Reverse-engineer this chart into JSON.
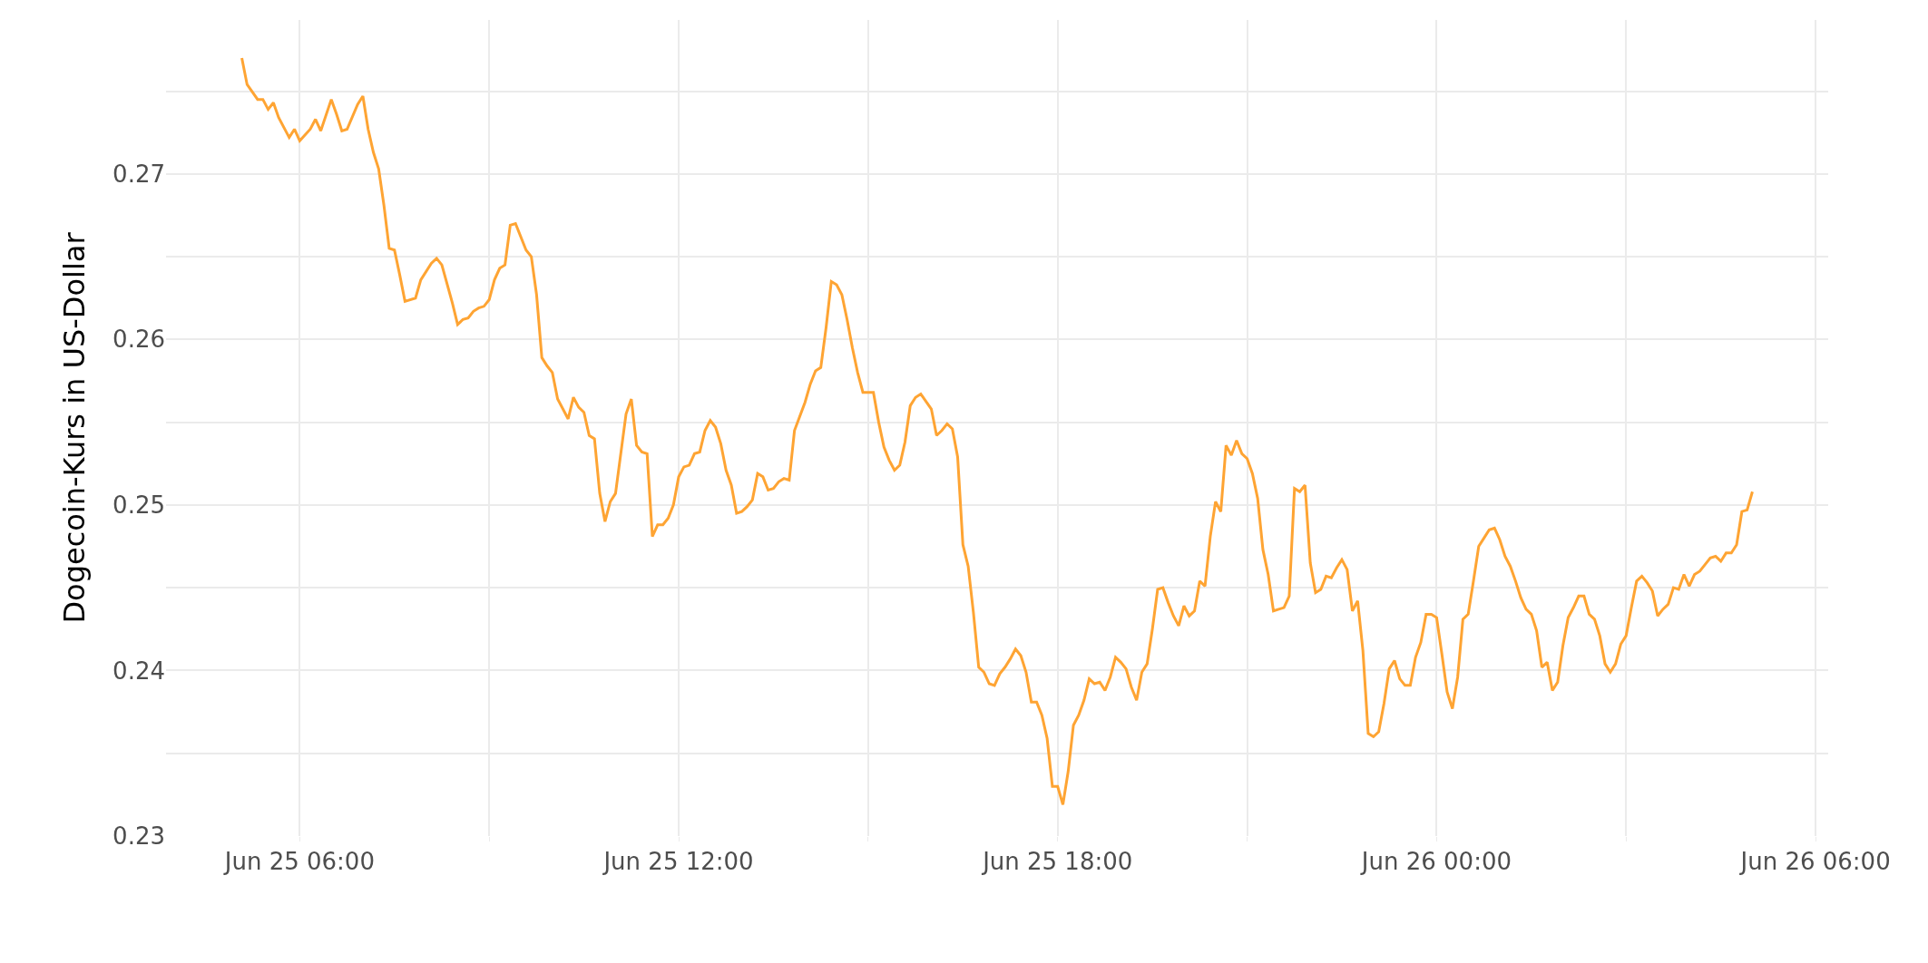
{
  "chart_data": {
    "type": "line",
    "ylabel": "Dogecoin-Kurs in US-Dollar",
    "color": "#fea433",
    "grid": true,
    "legend": false,
    "marker": "none",
    "line_style": "solid",
    "x": [
      "--06-25T05:05",
      "--06-25T05:10",
      "--06-25T05:20",
      "--06-25T05:25",
      "--06-25T05:30",
      "--06-25T05:35",
      "--06-25T05:40",
      "--06-25T05:50",
      "--06-25T05:55",
      "--06-25T06:00",
      "--06-25T06:10",
      "--06-25T06:15",
      "--06-25T06:20",
      "--06-25T06:30",
      "--06-25T06:35",
      "--06-25T06:40",
      "--06-25T06:45",
      "--06-25T06:55",
      "--06-25T07:00",
      "--06-25T07:05",
      "--06-25T07:10",
      "--06-25T07:15",
      "--06-25T07:20",
      "--06-25T07:25",
      "--06-25T07:30",
      "--06-25T07:35",
      "--06-25T07:40",
      "--06-25T07:50",
      "--06-25T07:55",
      "--06-25T08:05",
      "--06-25T08:10",
      "--06-25T08:15",
      "--06-25T08:25",
      "--06-25T08:30",
      "--06-25T08:35",
      "--06-25T08:40",
      "--06-25T08:45",
      "--06-25T08:50",
      "--06-25T08:55",
      "--06-25T09:00",
      "--06-25T09:05",
      "--06-25T09:10",
      "--06-25T09:15",
      "--06-25T09:20",
      "--06-25T09:25",
      "--06-25T09:35",
      "--06-25T09:40",
      "--06-25T09:45",
      "--06-25T09:50",
      "--06-25T09:55",
      "--06-25T10:00",
      "--06-25T10:05",
      "--06-25T10:15",
      "--06-25T10:20",
      "--06-25T10:25",
      "--06-25T10:30",
      "--06-25T10:35",
      "--06-25T10:40",
      "--06-25T10:45",
      "--06-25T10:50",
      "--06-25T10:55",
      "--06-25T11:00",
      "--06-25T11:10",
      "--06-25T11:15",
      "--06-25T11:20",
      "--06-25T11:25",
      "--06-25T11:30",
      "--06-25T11:35",
      "--06-25T11:40",
      "--06-25T11:45",
      "--06-25T11:50",
      "--06-25T11:55",
      "--06-25T12:00",
      "--06-25T12:05",
      "--06-25T12:10",
      "--06-25T12:15",
      "--06-25T12:20",
      "--06-25T12:25",
      "--06-25T12:30",
      "--06-25T12:35",
      "--06-25T12:40",
      "--06-25T12:45",
      "--06-25T12:50",
      "--06-25T12:55",
      "--06-25T13:00",
      "--06-25T13:05",
      "--06-25T13:10",
      "--06-25T13:15",
      "--06-25T13:20",
      "--06-25T13:25",
      "--06-25T13:30",
      "--06-25T13:35",
      "--06-25T13:40",
      "--06-25T13:45",
      "--06-25T13:50",
      "--06-25T14:00",
      "--06-25T14:05",
      "--06-25T14:10",
      "--06-25T14:15",
      "--06-25T14:20",
      "--06-25T14:25",
      "--06-25T14:30",
      "--06-25T14:35",
      "--06-25T14:40",
      "--06-25T14:45",
      "--06-25T14:50",
      "--06-25T14:55",
      "--06-25T15:05",
      "--06-25T15:10",
      "--06-25T15:15",
      "--06-25T15:20",
      "--06-25T15:25",
      "--06-25T15:30",
      "--06-25T15:35",
      "--06-25T15:40",
      "--06-25T15:45",
      "--06-25T15:50",
      "--06-25T16:00",
      "--06-25T16:05",
      "--06-25T16:10",
      "--06-25T16:15",
      "--06-25T16:20",
      "--06-25T16:25",
      "--06-25T16:30",
      "--06-25T16:35",
      "--06-25T16:40",
      "--06-25T16:45",
      "--06-25T16:50",
      "--06-25T16:55",
      "--06-25T17:00",
      "--06-25T17:05",
      "--06-25T17:10",
      "--06-25T17:15",
      "--06-25T17:20",
      "--06-25T17:25",
      "--06-25T17:30",
      "--06-25T17:35",
      "--06-25T17:40",
      "--06-25T17:45",
      "--06-25T17:50",
      "--06-25T17:55",
      "--06-25T18:00",
      "--06-25T18:05",
      "--06-25T18:10",
      "--06-25T18:15",
      "--06-25T18:20",
      "--06-25T18:25",
      "--06-25T18:30",
      "--06-25T18:35",
      "--06-25T18:40",
      "--06-25T18:45",
      "--06-25T18:50",
      "--06-25T18:55",
      "--06-25T19:00",
      "--06-25T19:05",
      "--06-25T19:10",
      "--06-25T19:15",
      "--06-25T19:20",
      "--06-25T19:25",
      "--06-25T19:30",
      "--06-25T19:35",
      "--06-25T19:40",
      "--06-25T19:45",
      "--06-25T19:50",
      "--06-25T19:55",
      "--06-25T20:00",
      "--06-25T20:05",
      "--06-25T20:10",
      "--06-25T20:15",
      "--06-25T20:20",
      "--06-25T20:25",
      "--06-25T20:30",
      "--06-25T20:35",
      "--06-25T20:40",
      "--06-25T20:45",
      "--06-25T20:50",
      "--06-25T20:55",
      "--06-25T21:00",
      "--06-25T21:05",
      "--06-25T21:10",
      "--06-25T21:15",
      "--06-25T21:20",
      "--06-25T21:25",
      "--06-25T21:30",
      "--06-25T21:35",
      "--06-25T21:40",
      "--06-25T21:45",
      "--06-25T21:50",
      "--06-25T21:55",
      "--06-25T22:00",
      "--06-25T22:05",
      "--06-25T22:10",
      "--06-25T22:15",
      "--06-25T22:20",
      "--06-25T22:25",
      "--06-25T22:30",
      "--06-25T22:35",
      "--06-25T22:40",
      "--06-25T22:45",
      "--06-25T22:50",
      "--06-25T22:55",
      "--06-25T23:00",
      "--06-25T23:05",
      "--06-25T23:10",
      "--06-25T23:15",
      "--06-25T23:20",
      "--06-25T23:25",
      "--06-25T23:30",
      "--06-25T23:35",
      "--06-25T23:40",
      "--06-25T23:45",
      "--06-25T23:50",
      "--06-25T23:55",
      "--06-26T00:00",
      "--06-26T00:05",
      "--06-26T00:10",
      "--06-26T00:15",
      "--06-26T00:20",
      "--06-26T00:25",
      "--06-26T00:30",
      "--06-26T00:35",
      "--06-26T00:40",
      "--06-26T00:45",
      "--06-26T00:50",
      "--06-26T00:55",
      "--06-26T01:00",
      "--06-26T01:05",
      "--06-26T01:10",
      "--06-26T01:15",
      "--06-26T01:20",
      "--06-26T01:25",
      "--06-26T01:30",
      "--06-26T01:35",
      "--06-26T01:40",
      "--06-26T01:45",
      "--06-26T01:50",
      "--06-26T01:55",
      "--06-26T02:00",
      "--06-26T02:05",
      "--06-26T02:10",
      "--06-26T02:15",
      "--06-26T02:20",
      "--06-26T02:25",
      "--06-26T02:30",
      "--06-26T02:35",
      "--06-26T02:40",
      "--06-26T02:45",
      "--06-26T02:50",
      "--06-26T02:55",
      "--06-26T03:00",
      "--06-26T03:05",
      "--06-26T03:10",
      "--06-26T03:15",
      "--06-26T03:20",
      "--06-26T03:25",
      "--06-26T03:30",
      "--06-26T03:35",
      "--06-26T03:40",
      "--06-26T03:45",
      "--06-26T03:50",
      "--06-26T03:55",
      "--06-26T04:00",
      "--06-26T04:05",
      "--06-26T04:10",
      "--06-26T04:15",
      "--06-26T04:20",
      "--06-26T04:25",
      "--06-26T04:30",
      "--06-26T04:35",
      "--06-26T04:40",
      "--06-26T04:45",
      "--06-26T04:50",
      "--06-26T04:55",
      "--06-26T05:00"
    ],
    "values": [
      0.277,
      0.2754,
      0.2745,
      0.2745,
      0.2739,
      0.2743,
      0.2734,
      0.2722,
      0.2727,
      0.272,
      0.2727,
      0.2733,
      0.2726,
      0.2745,
      0.2736,
      0.2726,
      0.2727,
      0.2742,
      0.2747,
      0.2727,
      0.2713,
      0.2703,
      0.2681,
      0.2655,
      0.2654,
      0.2639,
      0.2623,
      0.2625,
      0.2636,
      0.2646,
      0.2649,
      0.2645,
      0.2622,
      0.2609,
      0.2612,
      0.2613,
      0.2617,
      0.2619,
      0.262,
      0.2624,
      0.2636,
      0.2643,
      0.2645,
      0.2669,
      0.267,
      0.2654,
      0.265,
      0.2627,
      0.2589,
      0.2584,
      0.258,
      0.2564,
      0.2552,
      0.2565,
      0.2559,
      0.2556,
      0.2542,
      0.254,
      0.2507,
      0.249,
      0.2502,
      0.2507,
      0.2555,
      0.2564,
      0.2536,
      0.2532,
      0.2531,
      0.2481,
      0.2488,
      0.2488,
      0.2492,
      0.25,
      0.2517,
      0.2523,
      0.2524,
      0.2531,
      0.2532,
      0.2545,
      0.2551,
      0.2547,
      0.2537,
      0.2521,
      0.2512,
      0.2495,
      0.2496,
      0.2499,
      0.2503,
      0.2519,
      0.2517,
      0.2509,
      0.251,
      0.2514,
      0.2516,
      0.2515,
      0.2545,
      0.2562,
      0.2573,
      0.2581,
      0.2583,
      0.2607,
      0.2635,
      0.2633,
      0.2627,
      0.2612,
      0.2595,
      0.258,
      0.2568,
      0.2568,
      0.255,
      0.2535,
      0.2527,
      0.2521,
      0.2524,
      0.2538,
      0.256,
      0.2565,
      0.2567,
      0.2558,
      0.2542,
      0.2545,
      0.2549,
      0.2546,
      0.2529,
      0.2476,
      0.2463,
      0.2435,
      0.2402,
      0.2399,
      0.2392,
      0.2391,
      0.2398,
      0.2402,
      0.2407,
      0.2413,
      0.2409,
      0.2399,
      0.2381,
      0.2381,
      0.2373,
      0.2359,
      0.233,
      0.233,
      0.2319,
      0.2339,
      0.2367,
      0.2373,
      0.2382,
      0.2395,
      0.2392,
      0.2393,
      0.2388,
      0.2396,
      0.2408,
      0.2405,
      0.2401,
      0.239,
      0.2382,
      0.2399,
      0.2404,
      0.2425,
      0.2449,
      0.245,
      0.2441,
      0.2433,
      0.2427,
      0.2439,
      0.2433,
      0.2436,
      0.2454,
      0.2451,
      0.2481,
      0.2502,
      0.2496,
      0.2536,
      0.253,
      0.2539,
      0.2531,
      0.2528,
      0.2519,
      0.2504,
      0.2473,
      0.2458,
      0.2436,
      0.2437,
      0.2438,
      0.2445,
      0.251,
      0.2508,
      0.2512,
      0.2465,
      0.2447,
      0.2449,
      0.2457,
      0.2456,
      0.2462,
      0.2467,
      0.2461,
      0.2436,
      0.2442,
      0.2412,
      0.2362,
      0.236,
      0.2363,
      0.238,
      0.2401,
      0.2406,
      0.2395,
      0.2391,
      0.2391,
      0.2408,
      0.2417,
      0.2434,
      0.2434,
      0.2432,
      0.241,
      0.2387,
      0.2377,
      0.2396,
      0.2431,
      0.2434,
      0.2454,
      0.2475,
      0.248,
      0.2485,
      0.2486,
      0.2479,
      0.2469,
      0.2463,
      0.2454,
      0.2444,
      0.2437,
      0.2434,
      0.2424,
      0.2402,
      0.2405,
      0.2388,
      0.2393,
      0.2415,
      0.2432,
      0.2438,
      0.2445,
      0.2445,
      0.2434,
      0.2431,
      0.2421,
      0.2404,
      0.2399,
      0.2404,
      0.2416,
      0.2421,
      0.2438,
      0.2454,
      0.2457,
      0.2453,
      0.2448,
      0.2433,
      0.2437,
      0.244,
      0.245,
      0.2449,
      0.2458,
      0.2451,
      0.2458,
      0.246,
      0.2464,
      0.2468,
      0.2469,
      0.2466,
      0.2471,
      0.2471,
      0.2476,
      0.2496,
      0.2497,
      0.2508
    ],
    "xlim": [
      "--06-25T03:53",
      "--06-26T06:12"
    ],
    "xticks": [
      {
        "value": "--06-25T06:00",
        "label": "Jun 25 06:00"
      },
      {
        "value": "--06-25T09:00",
        "label": null
      },
      {
        "value": "--06-25T12:00",
        "label": "Jun 25 12:00"
      },
      {
        "value": "--06-25T15:00",
        "label": null
      },
      {
        "value": "--06-25T18:00",
        "label": "Jun 25 18:00"
      },
      {
        "value": "--06-25T21:00",
        "label": null
      },
      {
        "value": "--06-26T00:00",
        "label": "Jun 26 00:00"
      },
      {
        "value": "--06-26T03:00",
        "label": null
      },
      {
        "value": "--06-26T06:00",
        "label": "Jun 26 06:00"
      }
    ],
    "ylim": [
      0.23,
      0.2793
    ],
    "yticks": [
      0.23,
      {
        "value": 0.235,
        "label": null
      },
      0.24,
      {
        "value": 0.245,
        "label": null
      },
      0.25,
      {
        "value": 0.255,
        "label": null
      },
      0.26,
      {
        "value": 0.265,
        "label": null
      },
      0.27,
      {
        "value": 0.275,
        "label": null
      }
    ]
  }
}
